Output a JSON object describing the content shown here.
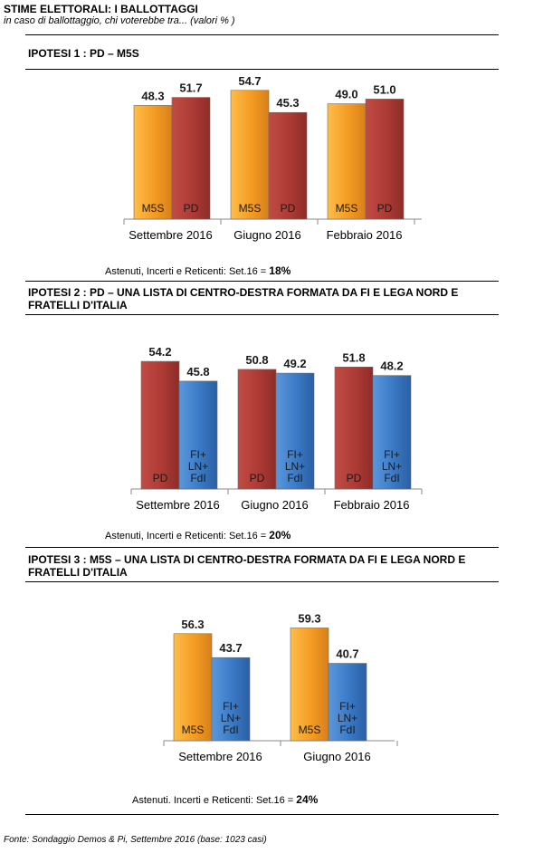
{
  "header": {
    "title": "STIME ELETTORALI: I BALLOTTAGGI",
    "subtitle": "in caso di ballottaggio, chi voterebbe tra... (valori % )"
  },
  "colors": {
    "M5S": "#f39b22",
    "PD": "#ad3a35",
    "CDX": "#3a79c6"
  },
  "panels": [
    {
      "heading": "IPOTESI 1 : PD – M5S",
      "note_label": "Astenuti, Incerti e Reticenti: Set.16 = ",
      "note_value": "18%"
    },
    {
      "heading": "IPOTESI 2 : PD – UNA LISTA DI CENTRO-DESTRA FORMATA DA FI E LEGA NORD E FRATELLI D'ITALIA",
      "note_label": "Astenuti, Incerti e Reticenti: Set.16 = ",
      "note_value": "20%"
    },
    {
      "heading": "IPOTESI 3 : M5S – UNA LISTA DI CENTRO-DESTRA FORMATA DA FI E LEGA NORD E FRATELLI D'ITALIA",
      "note_label": "Astenuti. Incerti e Reticenti: Set.16 = ",
      "note_value": "24%"
    }
  ],
  "chart_data": [
    {
      "type": "bar",
      "categories": [
        "Settembre 2016",
        "Giugno 2016",
        "Febbraio 2016"
      ],
      "series": [
        {
          "name": "M5S",
          "label": [
            "M5S"
          ],
          "color": "M5S",
          "values": [
            48.3,
            54.7,
            49.0
          ]
        },
        {
          "name": "PD",
          "label": [
            "PD"
          ],
          "color": "PD",
          "values": [
            51.7,
            45.3,
            51.0
          ]
        }
      ],
      "ylim": [
        0,
        60
      ]
    },
    {
      "type": "bar",
      "categories": [
        "Settembre 2016",
        "Giugno 2016",
        "Febbraio 2016"
      ],
      "series": [
        {
          "name": "PD",
          "label": [
            "PD"
          ],
          "color": "PD",
          "values": [
            54.2,
            50.8,
            51.8
          ]
        },
        {
          "name": "FI+ LN+ FdI",
          "label": [
            "FI+",
            "LN+",
            "FdI"
          ],
          "color": "CDX",
          "values": [
            45.8,
            49.2,
            48.2
          ]
        }
      ],
      "ylim": [
        0,
        60
      ]
    },
    {
      "type": "bar",
      "categories": [
        "Settembre 2016",
        "Giugno 2016"
      ],
      "series": [
        {
          "name": "M5S",
          "label": [
            "M5S"
          ],
          "color": "M5S",
          "values": [
            56.3,
            59.3
          ]
        },
        {
          "name": "FI+ LN+ FdI",
          "label": [
            "FI+",
            "LN+",
            "FdI"
          ],
          "color": "CDX",
          "values": [
            43.7,
            40.7
          ]
        }
      ],
      "ylim": [
        0,
        60
      ]
    }
  ],
  "footer": {
    "source": "Fonte: Sondaggio Demos & Pi, Settembre 2016 (base: 1023 casi)"
  }
}
